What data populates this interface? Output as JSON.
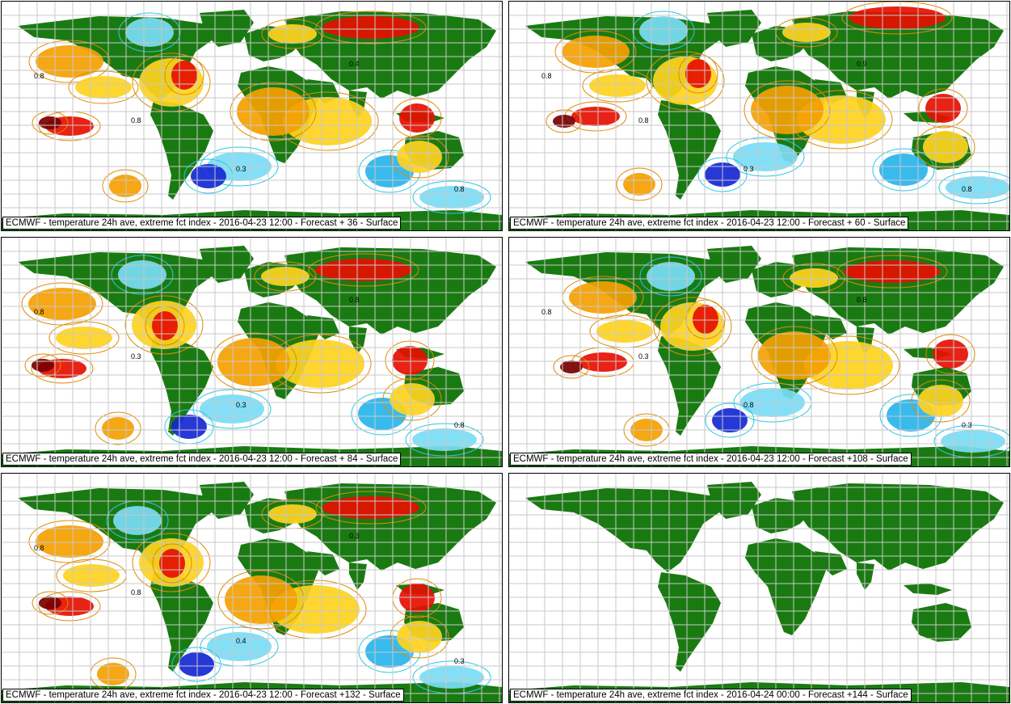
{
  "colors": {
    "land": "#1a7a12",
    "grid": "#c8c8c8",
    "ocean": "#ffffff",
    "warm_light": "#ffd21e",
    "warm_mid": "#f5a000",
    "warm_strong": "#e60f00",
    "warm_extreme": "#780000",
    "cold_light": "#78dcf5",
    "cold_mid": "#28b4ec",
    "cold_strong": "#1428d2",
    "contour_warm": "#e08a00",
    "contour_cold": "#28c8e6"
  },
  "panels": [
    {
      "caption": "ECMWF - temperature 24h ave, extreme fct index - 2016-04-23 12:00 - Forecast + 36 - Surface",
      "labels": [
        "0.8",
        "0.8",
        "0.3",
        "0.4",
        "0.8"
      ]
    },
    {
      "caption": "ECMWF - temperature 24h ave, extreme fct index - 2016-04-23 12:00 - Forecast + 60 - Surface",
      "labels": [
        "0.8",
        "0.8",
        "0.3",
        "0.9",
        "0.8"
      ]
    },
    {
      "caption": "ECMWF - temperature 24h ave, extreme fct index - 2016-04-23 12:00 - Forecast + 84 - Surface",
      "labels": [
        "0.8",
        "0.3",
        "0.3",
        "0.8",
        "0.8"
      ]
    },
    {
      "caption": "ECMWF - temperature 24h ave, extreme fct index - 2016-04-23 12:00 - Forecast +108 - Surface",
      "labels": [
        "0.8",
        "0.3",
        "0.8",
        "0.8",
        "0.3"
      ]
    },
    {
      "caption": "ECMWF - temperature 24h ave, extreme fct index - 2016-04-23 12:00 - Forecast +132 - Surface",
      "labels": [
        "0.8",
        "0.8",
        "0.4",
        "0.3",
        "0.3"
      ]
    },
    {
      "caption": "ECMWF - temperature 24h ave, extreme fct index - 2016-04-24 00:00 - Forecast +144 - Surface",
      "labels": []
    }
  ]
}
